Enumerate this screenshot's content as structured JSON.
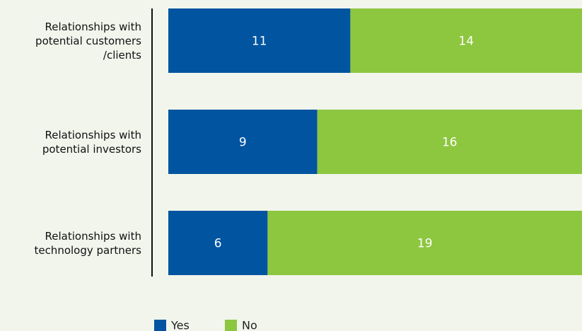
{
  "chart_data": {
    "type": "stacked-bar-horizontal",
    "categories": [
      "Relationships with\npotential customers\n/clients",
      "Relationships with\npotential investors",
      "Relationships with\ntechnology partners"
    ],
    "series": [
      {
        "name": "Yes",
        "color": "#0054a0",
        "values": [
          11,
          9,
          6
        ]
      },
      {
        "name": "No",
        "color": "#8dc63f",
        "values": [
          14,
          16,
          19
        ]
      }
    ],
    "xlim": [
      0,
      25
    ]
  }
}
